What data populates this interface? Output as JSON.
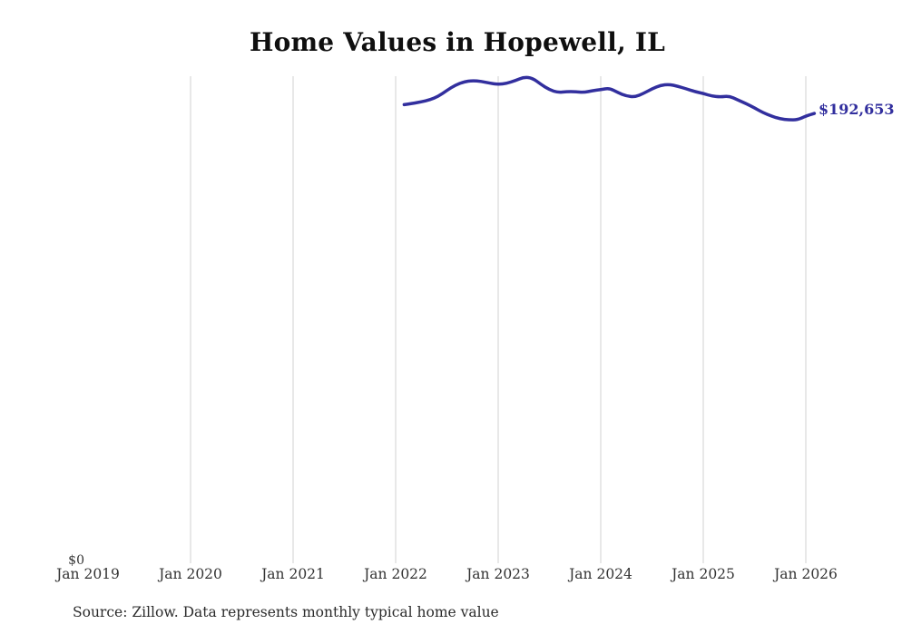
{
  "chart_data": {
    "type": "line",
    "title": "Home Values in Hopewell, IL",
    "series_name": "Monthly typical home value",
    "x": [
      "2022-02",
      "2022-03",
      "2022-04",
      "2022-05",
      "2022-06",
      "2022-07",
      "2022-08",
      "2022-09",
      "2022-10",
      "2022-11",
      "2022-12",
      "2023-01",
      "2023-02",
      "2023-03",
      "2023-04",
      "2023-05",
      "2023-06",
      "2023-07",
      "2023-08",
      "2023-09",
      "2023-10",
      "2023-11",
      "2023-12",
      "2024-01",
      "2024-02",
      "2024-03",
      "2024-04",
      "2024-05",
      "2024-06",
      "2024-07",
      "2024-08",
      "2024-09",
      "2024-10",
      "2024-11",
      "2024-12",
      "2025-01",
      "2025-02",
      "2025-03",
      "2025-04",
      "2025-05",
      "2025-06",
      "2025-07",
      "2025-08",
      "2025-09",
      "2025-10",
      "2025-11",
      "2025-12",
      "2026-01",
      "2026-02"
    ],
    "values": [
      196400,
      197000,
      197600,
      198500,
      200000,
      202500,
      204800,
      206200,
      206700,
      206400,
      205600,
      205100,
      205500,
      206700,
      208200,
      207800,
      205100,
      202800,
      201600,
      202000,
      202000,
      201600,
      202400,
      202800,
      203500,
      201600,
      200100,
      199700,
      201200,
      203200,
      204700,
      205100,
      204300,
      203200,
      202000,
      201200,
      200100,
      199700,
      200100,
      198500,
      196900,
      195000,
      193000,
      191500,
      190300,
      189900,
      189900,
      191500,
      192653
    ],
    "x_tick_labels": [
      {
        "label": "Jan 2019",
        "month": "2019-01",
        "gridline": false
      },
      {
        "label": "Jan 2020",
        "month": "2020-01",
        "gridline": true
      },
      {
        "label": "Jan 2021",
        "month": "2021-01",
        "gridline": true
      },
      {
        "label": "Jan 2022",
        "month": "2022-01",
        "gridline": true
      },
      {
        "label": "Jan 2023",
        "month": "2023-01",
        "gridline": true
      },
      {
        "label": "Jan 2024",
        "month": "2024-01",
        "gridline": true
      },
      {
        "label": "Jan 2025",
        "month": "2025-01",
        "gridline": true
      },
      {
        "label": "Jan 2026",
        "month": "2026-01",
        "gridline": true
      }
    ],
    "y_zero_label": "$0",
    "end_label": "$192,653",
    "end_value": 192653,
    "xlim": [
      "2019-01",
      "2026-01"
    ],
    "ylim": [
      0,
      208600
    ],
    "grid": "vertical-only",
    "legend": "none",
    "line_color": "#322f9e",
    "grid_color": "#d2d2d2",
    "label_color": "#333333",
    "title_color": "#0f0f0f"
  },
  "footer": {
    "source": "Source: Zillow. Data represents monthly typical home value"
  }
}
